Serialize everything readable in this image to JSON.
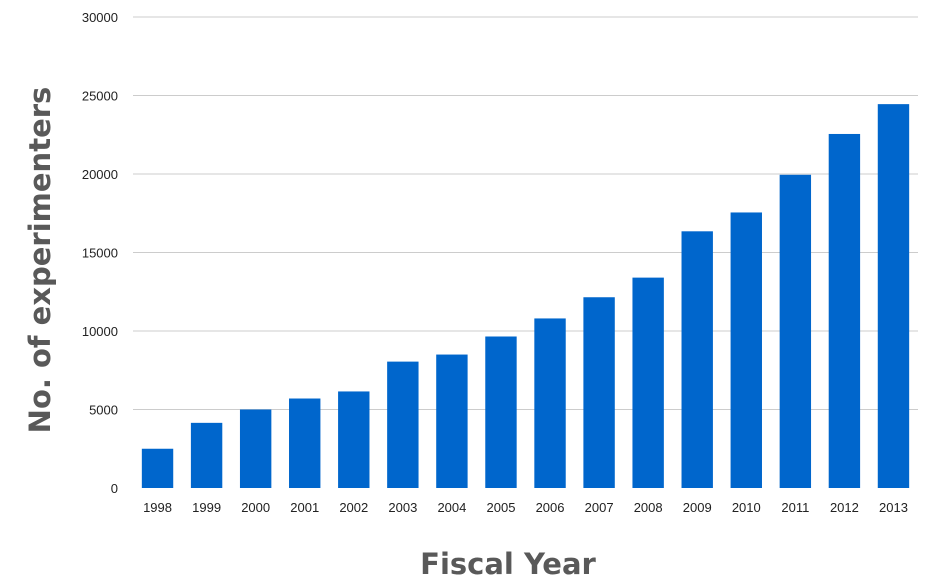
{
  "chart_data": {
    "type": "bar",
    "title": "",
    "xlabel": "Fiscal Year",
    "ylabel": "No. of experimenters",
    "categories": [
      "1998",
      "1999",
      "2000",
      "2001",
      "2002",
      "2003",
      "2004",
      "2005",
      "2006",
      "2007",
      "2008",
      "2009",
      "2010",
      "2011",
      "2012",
      "2013"
    ],
    "values": [
      2500,
      4150,
      5000,
      5700,
      6150,
      8050,
      8500,
      9650,
      10800,
      12150,
      13400,
      16350,
      17550,
      19950,
      22550,
      24450
    ],
    "ylim": [
      0,
      30000
    ],
    "yticks": [
      "0",
      "5000",
      "10000",
      "15000",
      "20000",
      "25000",
      "30000"
    ],
    "grid": true,
    "legend": "none",
    "bar_color": "#0066CC",
    "grid_color": "#CCCCCC"
  }
}
